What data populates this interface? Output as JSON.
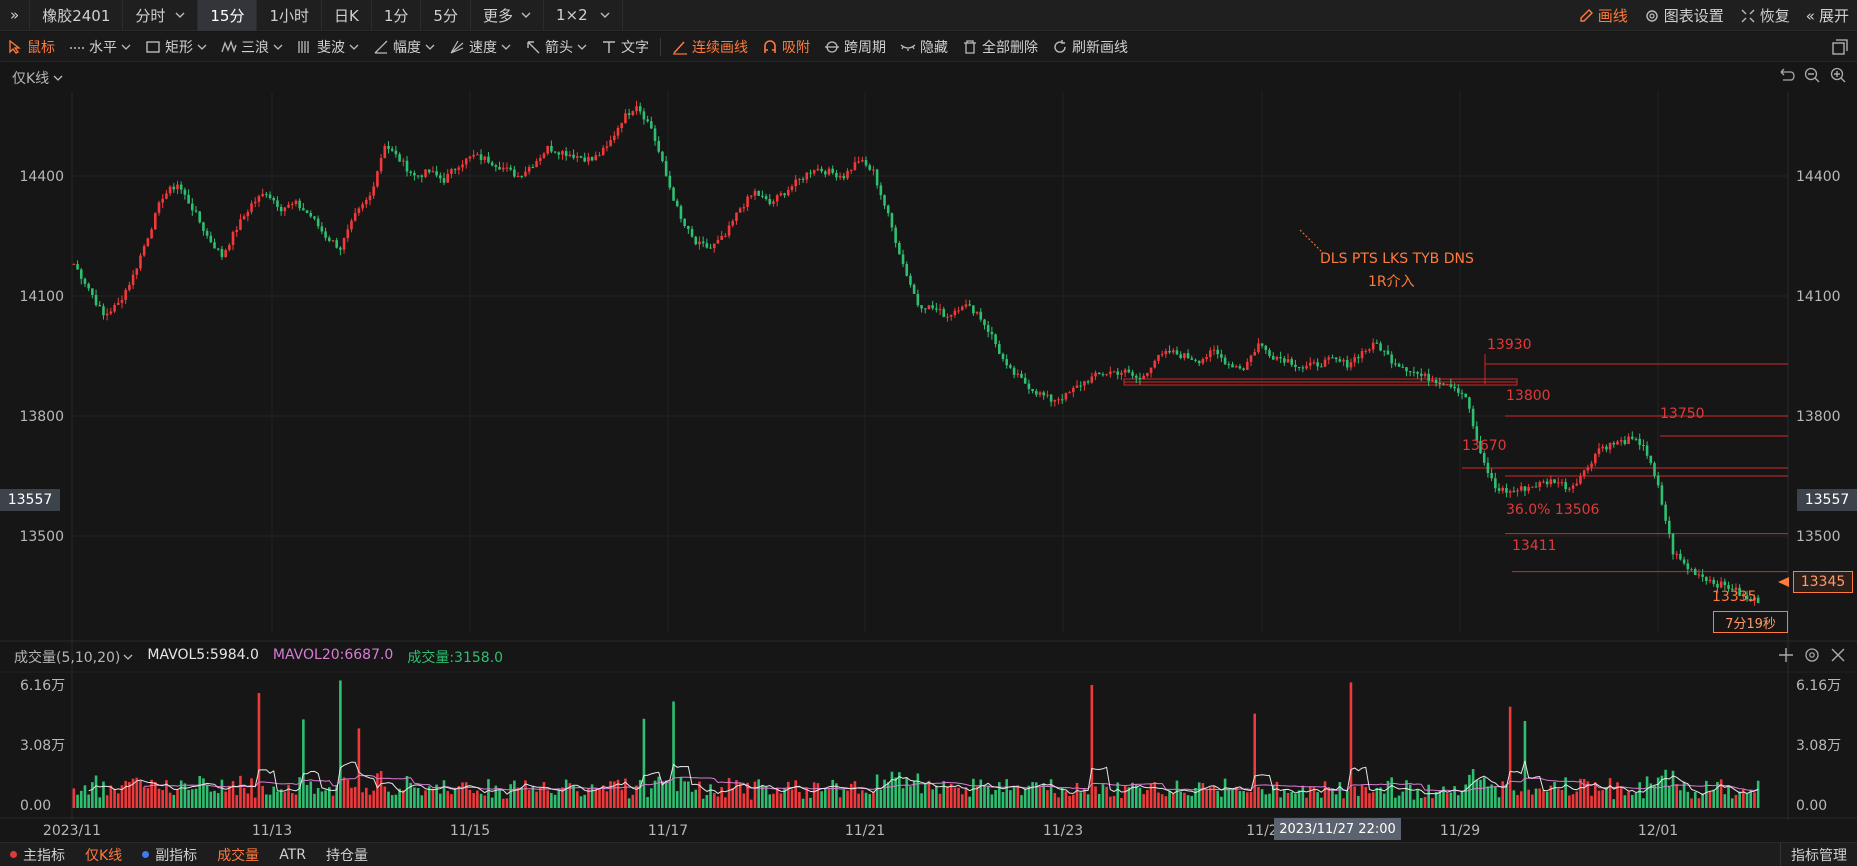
{
  "top_bar": {
    "back_label": "»",
    "symbol": "橡胶2401",
    "periods": [
      "分时",
      "15分",
      "1小时",
      "日K",
      "1分",
      "5分",
      "更多",
      "1×2"
    ],
    "active_period": "15分",
    "right": {
      "draw": "画线",
      "settings": "图表设置",
      "restore": "恢复",
      "expand": "展开"
    }
  },
  "draw_toolbar": {
    "tools": [
      "鼠标",
      "水平",
      "矩形",
      "三浪",
      "斐波",
      "幅度",
      "速度",
      "箭头",
      "文字"
    ],
    "actions": [
      "连续画线",
      "吸附",
      "跨周期",
      "隐藏",
      "全部删除",
      "刷新画线"
    ]
  },
  "main_chart": {
    "mode_label": "仅K线",
    "y_ticks": [
      "14400",
      "14100",
      "13800",
      "13500"
    ],
    "current_left_tag": "13557",
    "current_right_tag": "13557",
    "last_price_tag": "13345",
    "low_label": "13335",
    "countdown": "7分19秒",
    "annotation_line1": "DLS PTS LKS TYB DNS",
    "annotation_line2": "1R介入",
    "levels": [
      "13930",
      "13800",
      "13750",
      "13670",
      "36.0% 13506",
      "13411"
    ],
    "x_ticks": [
      "2023/11",
      "11/13",
      "11/15",
      "11/17",
      "11/21",
      "11/23",
      "11/2",
      "11/29",
      "12/01"
    ],
    "crosshair_time": "2023/11/27 22:00"
  },
  "volume_panel": {
    "title": "成交量(5,10,20)",
    "ma5": "MAVOL5:5984.0",
    "ma20": "MAVOL20:6687.0",
    "vol": "成交量:3158.0",
    "y_ticks": [
      "6.16万",
      "3.08万",
      "0.00"
    ]
  },
  "bottom_bar": {
    "items": [
      "主指标",
      "仅K线",
      "副指标",
      "成交量",
      "ATR",
      "持仓量"
    ],
    "right": "指标管理"
  },
  "colors": {
    "up": "#f0393a",
    "down": "#2fbf71",
    "accent": "#ff7a3d",
    "ma20": "#d97bd3",
    "ma5": "#e6e6e6"
  },
  "chart_data": {
    "type": "candlestick",
    "ylim": [
      13260,
      14610
    ],
    "price_path": [
      14180,
      14120,
      14050,
      14080,
      14150,
      14250,
      14350,
      14380,
      14320,
      14250,
      14200,
      14270,
      14330,
      14360,
      14320,
      14330,
      14300,
      14250,
      14220,
      14300,
      14350,
      14480,
      14440,
      14400,
      14410,
      14390,
      14430,
      14450,
      14440,
      14420,
      14400,
      14430,
      14470,
      14460,
      14450,
      14440,
      14470,
      14540,
      14580,
      14520,
      14400,
      14290,
      14230,
      14220,
      14250,
      14320,
      14360,
      14330,
      14360,
      14390,
      14420,
      14410,
      14400,
      14440,
      14410,
      14300,
      14180,
      14080,
      14070,
      14050,
      14080,
      14060,
      14000,
      13920,
      13890,
      13860,
      13840,
      13850,
      13880,
      13900,
      13910,
      13910,
      13890,
      13940,
      13960,
      13950,
      13940,
      13960,
      13930,
      13920,
      13980,
      13950,
      13940,
      13920,
      13930,
      13940,
      13930,
      13960,
      13980,
      13940,
      13920,
      13900,
      13890,
      13880,
      13850,
      13700,
      13620,
      13610,
      13620,
      13630,
      13640,
      13620,
      13660,
      13720,
      13730,
      13740,
      13730,
      13620,
      13460,
      13420,
      13400,
      13380,
      13370,
      13340
    ],
    "volume_max": 61600,
    "ma5_last": 5984.0,
    "ma20_last": 6687.0,
    "vol_last": 3158.0
  }
}
